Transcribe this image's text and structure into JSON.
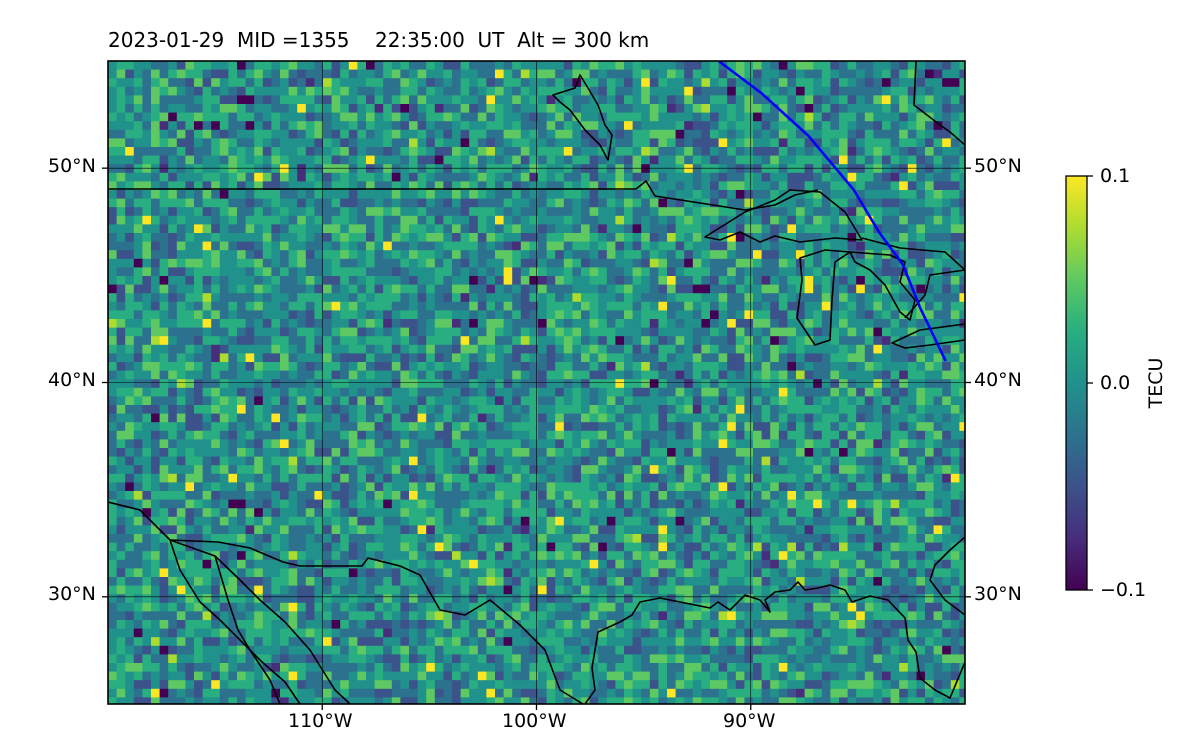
{
  "title": {
    "date": "2023-01-29",
    "mid": "MID =1355",
    "time": "22:35:00  UT",
    "alt": "Alt = 300 km"
  },
  "map": {
    "lat_range": [
      25,
      55
    ],
    "lon_range": [
      -120,
      -80
    ],
    "lat_ticks": [
      {
        "value": 50,
        "label": "50°N"
      },
      {
        "value": 40,
        "label": "40°N"
      },
      {
        "value": 30,
        "label": "30°N"
      }
    ],
    "lon_ticks": [
      {
        "value": -110,
        "label": "110°W"
      },
      {
        "value": -100,
        "label": "100°W"
      },
      {
        "value": -90,
        "label": "90°W"
      }
    ],
    "gridlines": true,
    "coastline_color": "#000000",
    "track_color": "#0000ff",
    "satellite_track": [
      [
        -91.5,
        55.0
      ],
      [
        -89.5,
        53.5
      ],
      [
        -87.3,
        51.5
      ],
      [
        -85.2,
        49.0
      ],
      [
        -84.0,
        47.0
      ],
      [
        -82.9,
        45.5
      ],
      [
        -82.1,
        43.5
      ],
      [
        -80.9,
        41.0
      ]
    ]
  },
  "colorbar": {
    "label": "TECU",
    "cmap": "viridis",
    "min": -0.1,
    "max": 0.1,
    "ticks": [
      {
        "value": 0.1,
        "label": "0.1"
      },
      {
        "value": 0.0,
        "label": "0.0"
      },
      {
        "value": -0.1,
        "label": "−0.1"
      }
    ]
  }
}
